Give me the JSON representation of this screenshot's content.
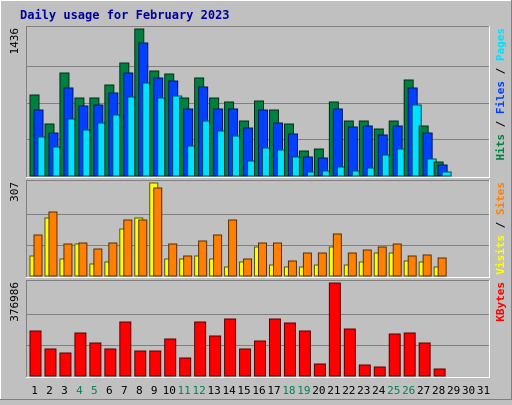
{
  "chart_data": {
    "type": "bar",
    "title": "Daily usage for February 2023",
    "categories": [
      "1",
      "2",
      "3",
      "4",
      "5",
      "6",
      "7",
      "8",
      "9",
      "10",
      "11",
      "12",
      "13",
      "14",
      "15",
      "16",
      "17",
      "18",
      "19",
      "20",
      "21",
      "22",
      "23",
      "24",
      "25",
      "26",
      "27",
      "28",
      "29",
      "30",
      "31"
    ],
    "weekend_days": [
      4,
      5,
      11,
      12,
      18,
      19,
      25,
      26
    ],
    "panels": [
      {
        "id": "hits",
        "max_label": "1436",
        "ylim": [
          0,
          1436
        ],
        "grid": true,
        "legend": [
          {
            "label": "Pages",
            "color": "#00e0ff"
          },
          {
            "label": "Files",
            "color": "#0040ff"
          },
          {
            "label": "Hits",
            "color": "#008040"
          }
        ],
        "series": [
          {
            "name": "Hits",
            "color": "#008040",
            "values": [
              790,
              510,
              1010,
              760,
              760,
              890,
              1100,
              1436,
              1030,
              1000,
              760,
              960,
              760,
              720,
              540,
              730,
              640,
              510,
              240,
              260,
              720,
              540,
              540,
              460,
              540,
              940,
              490,
              140,
              0,
              0,
              0
            ]
          },
          {
            "name": "Files",
            "color": "#0040ff",
            "values": [
              640,
              420,
              860,
              680,
              690,
              810,
              1010,
              1300,
              960,
              930,
              650,
              870,
              650,
              650,
              470,
              640,
              520,
              410,
              190,
              180,
              650,
              480,
              490,
              400,
              490,
              860,
              420,
              110,
              0,
              0,
              0
            ]
          },
          {
            "name": "Pages",
            "color": "#00e0ff",
            "values": [
              380,
              280,
              560,
              450,
              520,
              600,
              770,
              910,
              760,
              780,
              290,
              540,
              440,
              390,
              150,
              270,
              250,
              190,
              40,
              50,
              90,
              50,
              80,
              210,
              260,
              690,
              170,
              40,
              0,
              0,
              0
            ]
          }
        ]
      },
      {
        "id": "visits",
        "max_label": "307",
        "ylim": [
          0,
          307
        ],
        "grid": true,
        "legend": [
          {
            "label": "Sites",
            "color": "#ff8000"
          },
          {
            "label": "Visits",
            "color": "#ffff00"
          }
        ],
        "series": [
          {
            "name": "Visits",
            "color": "#ffff00",
            "values": [
              65,
              190,
              55,
              105,
              40,
              45,
              155,
              190,
              307,
              55,
              55,
              65,
              55,
              30,
              45,
              95,
              35,
              30,
              30,
              35,
              95,
              35,
              45,
              75,
              75,
              50,
              45,
              30,
              0,
              0,
              0
            ]
          },
          {
            "name": "Sites",
            "color": "#ff8000",
            "values": [
              135,
              210,
              105,
              110,
              90,
              110,
              185,
              185,
              290,
              105,
              65,
              115,
              135,
              185,
              55,
              110,
              110,
              50,
              75,
              75,
              140,
              75,
              85,
              95,
              105,
              65,
              70,
              60,
              0,
              0,
              0
            ]
          }
        ]
      },
      {
        "id": "kbytes",
        "max_label": "376986",
        "ylim": [
          0,
          376986
        ],
        "grid": true,
        "legend": [
          {
            "label": "KBytes",
            "color": "#ff0000"
          }
        ],
        "series": [
          {
            "name": "KBytes",
            "color": "#ff0000",
            "values": [
              184000,
              110000,
              95000,
              175000,
              133000,
              110000,
              220000,
              102000,
              102000,
              150000,
              73000,
              220000,
              162000,
              233000,
              110000,
              140000,
              230000,
              216000,
              184000,
              47000,
              376986,
              190000,
              44000,
              37000,
              171000,
              174000,
              133000,
              27000,
              0,
              0,
              0
            ]
          }
        ]
      }
    ]
  }
}
